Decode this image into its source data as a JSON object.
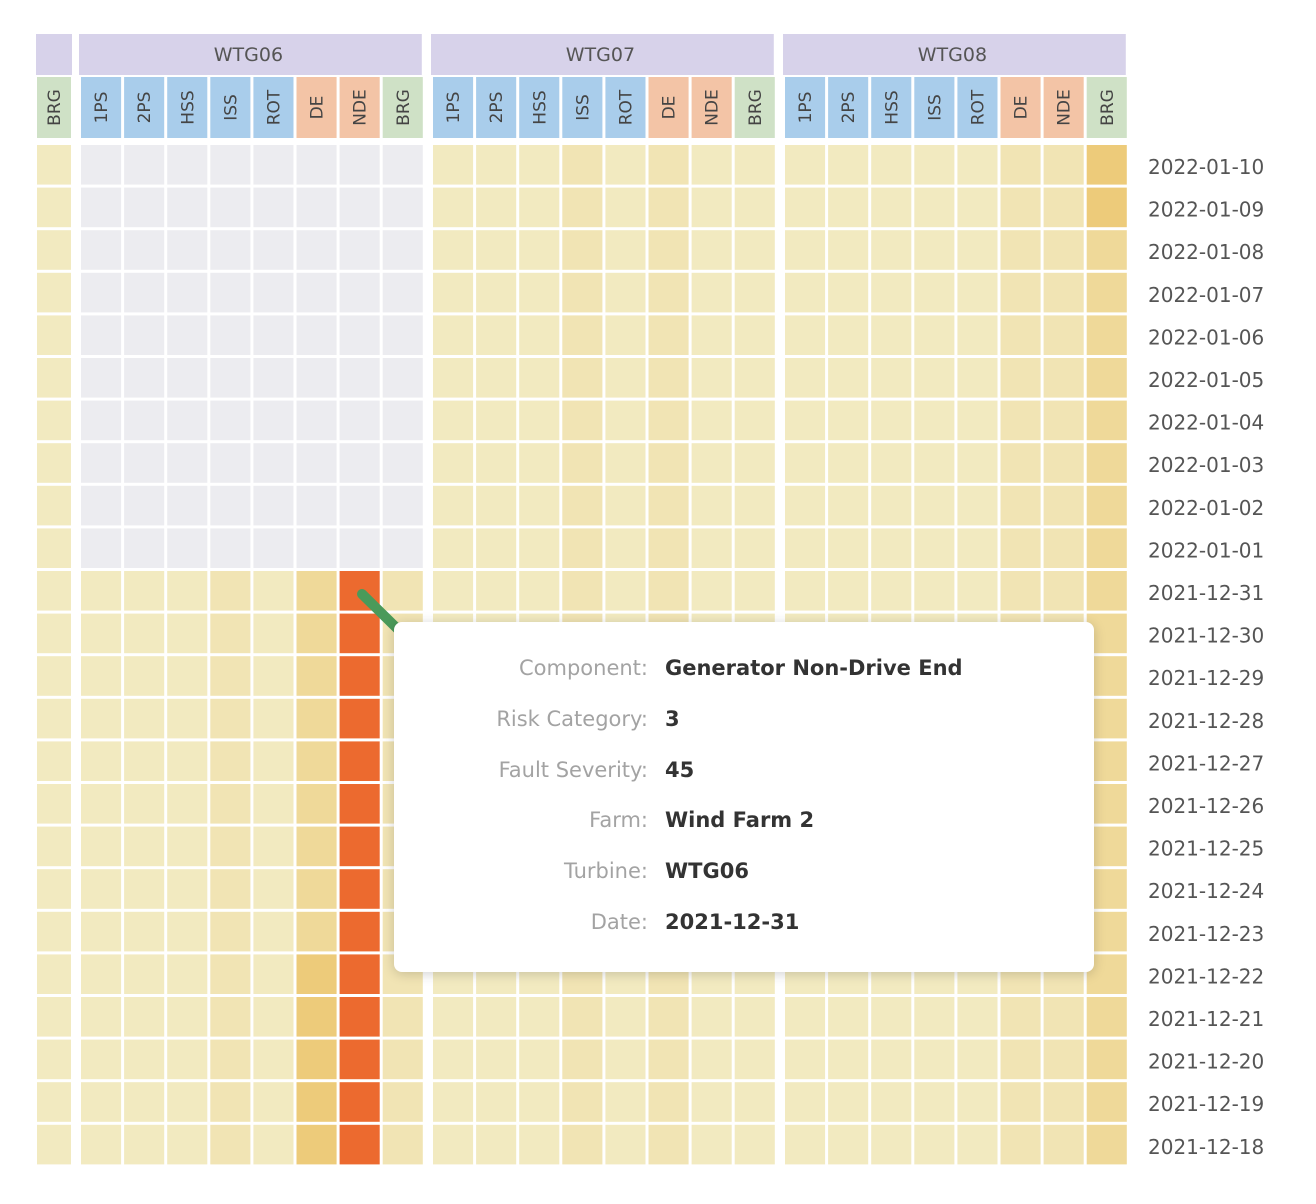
{
  "chart_data": {
    "type": "heatmap",
    "turbines": [
      "WTG06",
      "WTG07",
      "WTG08"
    ],
    "standalone_column": {
      "label": "BRG",
      "group": "brg"
    },
    "components": [
      {
        "label": "1PS",
        "group": "gearbox"
      },
      {
        "label": "2PS",
        "group": "gearbox"
      },
      {
        "label": "HSS",
        "group": "gearbox"
      },
      {
        "label": "ISS",
        "group": "gearbox"
      },
      {
        "label": "ROT",
        "group": "gearbox"
      },
      {
        "label": "DE",
        "group": "generator"
      },
      {
        "label": "NDE",
        "group": "generator"
      },
      {
        "label": "BRG",
        "group": "brg"
      }
    ],
    "dates": [
      "2022-01-10",
      "2022-01-09",
      "2022-01-08",
      "2022-01-07",
      "2022-01-06",
      "2022-01-05",
      "2022-01-04",
      "2022-01-03",
      "2022-01-02",
      "2022-01-01",
      "2021-12-31",
      "2021-12-30",
      "2021-12-29",
      "2021-12-28",
      "2021-12-27",
      "2021-12-26",
      "2021-12-25",
      "2021-12-24",
      "2021-12-23",
      "2021-12-22",
      "2021-12-21",
      "2021-12-20",
      "2021-12-19",
      "2021-12-18"
    ],
    "category_colors": {
      "missing": "#ececf0",
      "1": "#f2eac0",
      "1.5": "#f1e4b4",
      "2": "#efd999",
      "2.5": "#edcb7a",
      "3": "#ec6a2f"
    },
    "header_colors": {
      "turbine": "#d7d2ea",
      "gearbox": "#a9cdeb",
      "generator": "#f3c4a6",
      "brg": "#cfe1c6"
    },
    "standalone_values": [
      1,
      1,
      1,
      1,
      1,
      1,
      1,
      1,
      1,
      1,
      1,
      1,
      1,
      1,
      1,
      1,
      1,
      1,
      1,
      1,
      1,
      1,
      1,
      1
    ],
    "values": {
      "WTG06": [
        [
          "missing",
          "missing",
          "missing",
          "missing",
          "missing",
          "missing",
          "missing",
          "missing"
        ],
        [
          "missing",
          "missing",
          "missing",
          "missing",
          "missing",
          "missing",
          "missing",
          "missing"
        ],
        [
          "missing",
          "missing",
          "missing",
          "missing",
          "missing",
          "missing",
          "missing",
          "missing"
        ],
        [
          "missing",
          "missing",
          "missing",
          "missing",
          "missing",
          "missing",
          "missing",
          "missing"
        ],
        [
          "missing",
          "missing",
          "missing",
          "missing",
          "missing",
          "missing",
          "missing",
          "missing"
        ],
        [
          "missing",
          "missing",
          "missing",
          "missing",
          "missing",
          "missing",
          "missing",
          "missing"
        ],
        [
          "missing",
          "missing",
          "missing",
          "missing",
          "missing",
          "missing",
          "missing",
          "missing"
        ],
        [
          "missing",
          "missing",
          "missing",
          "missing",
          "missing",
          "missing",
          "missing",
          "missing"
        ],
        [
          "missing",
          "missing",
          "missing",
          "missing",
          "missing",
          "missing",
          "missing",
          "missing"
        ],
        [
          "missing",
          "missing",
          "missing",
          "missing",
          "missing",
          "missing",
          "missing",
          "missing"
        ],
        [
          1,
          1,
          1,
          1.5,
          1,
          2,
          3,
          1.5
        ],
        [
          1,
          1,
          1,
          1.5,
          1,
          2,
          3,
          1.5
        ],
        [
          1,
          1,
          1,
          1.5,
          1,
          2,
          3,
          1.5
        ],
        [
          1,
          1,
          1,
          1.5,
          1,
          2,
          3,
          1.5
        ],
        [
          1,
          1,
          1,
          1.5,
          1,
          2,
          3,
          1.5
        ],
        [
          1,
          1,
          1,
          1.5,
          1,
          2,
          3,
          1.5
        ],
        [
          1,
          1,
          1,
          1.5,
          1,
          2,
          3,
          1.5
        ],
        [
          1,
          1,
          1,
          1.5,
          1,
          2,
          3,
          1.5
        ],
        [
          1,
          1,
          1,
          1.5,
          1,
          2,
          3,
          1.5
        ],
        [
          1,
          1,
          1,
          1.5,
          1,
          2.5,
          3,
          1.5
        ],
        [
          1,
          1,
          1,
          1.5,
          1,
          2.5,
          3,
          1.5
        ],
        [
          1,
          1,
          1,
          1.5,
          1,
          2.5,
          3,
          1.5
        ],
        [
          1,
          1,
          1,
          1.5,
          1,
          2.5,
          3,
          1.5
        ],
        [
          1,
          1,
          1,
          1.5,
          1,
          2.5,
          3,
          1.5
        ]
      ],
      "WTG07": [
        [
          1,
          1,
          1,
          1.5,
          1,
          1.5,
          1,
          1
        ],
        [
          1,
          1,
          1,
          1.5,
          1,
          1.5,
          1,
          1
        ],
        [
          1,
          1,
          1,
          1.5,
          1,
          1.5,
          1,
          1
        ],
        [
          1,
          1,
          1,
          1.5,
          1,
          1.5,
          1,
          1
        ],
        [
          1,
          1,
          1,
          1.5,
          1,
          1.5,
          1,
          1
        ],
        [
          1,
          1,
          1,
          1.5,
          1,
          1.5,
          1,
          1
        ],
        [
          1,
          1,
          1,
          1.5,
          1,
          1.5,
          1,
          1
        ],
        [
          1,
          1,
          1,
          1.5,
          1,
          1.5,
          1,
          1
        ],
        [
          1,
          1,
          1,
          1.5,
          1,
          1.5,
          1,
          1
        ],
        [
          1,
          1,
          1,
          1.5,
          1,
          1.5,
          1,
          1
        ],
        [
          1,
          1,
          1,
          1.5,
          1,
          1.5,
          1,
          1
        ],
        [
          1,
          1,
          1,
          1.5,
          1,
          1.5,
          1,
          1
        ],
        [
          1,
          1,
          1,
          1.5,
          1,
          1.5,
          1,
          1
        ],
        [
          1,
          1,
          1,
          1.5,
          1,
          1.5,
          1,
          1
        ],
        [
          1,
          1,
          1,
          1.5,
          1,
          1.5,
          1,
          1
        ],
        [
          1,
          1,
          1,
          1.5,
          1,
          1.5,
          1,
          1
        ],
        [
          1,
          1,
          1,
          1.5,
          1,
          1.5,
          1,
          1
        ],
        [
          1,
          1,
          1,
          1.5,
          1,
          1.5,
          1,
          1
        ],
        [
          1,
          1,
          1,
          1.5,
          1,
          1.5,
          1,
          1
        ],
        [
          1,
          1,
          1,
          1.5,
          1,
          1.5,
          1,
          1
        ],
        [
          1,
          1,
          1,
          1.5,
          1,
          1.5,
          1,
          1
        ],
        [
          1,
          1,
          1,
          1.5,
          1,
          1.5,
          1,
          1
        ],
        [
          1,
          1,
          1,
          1.5,
          1,
          1.5,
          1,
          1
        ],
        [
          1,
          1,
          1,
          1.5,
          1,
          1.5,
          1,
          1
        ]
      ],
      "WTG08": [
        [
          1,
          1,
          1,
          1,
          1,
          1.5,
          1.5,
          2.5
        ],
        [
          1,
          1,
          1,
          1,
          1,
          1.5,
          1.5,
          2.5
        ],
        [
          1,
          1,
          1,
          1,
          1,
          1.5,
          1.5,
          2
        ],
        [
          1,
          1,
          1,
          1,
          1,
          1.5,
          1.5,
          2
        ],
        [
          1,
          1,
          1,
          1,
          1,
          1.5,
          1.5,
          2
        ],
        [
          1,
          1,
          1,
          1,
          1,
          1.5,
          1.5,
          2
        ],
        [
          1,
          1,
          1,
          1,
          1,
          1.5,
          1.5,
          2
        ],
        [
          1,
          1,
          1,
          1,
          1,
          1.5,
          1.5,
          2
        ],
        [
          1,
          1,
          1,
          1,
          1,
          1.5,
          1.5,
          2
        ],
        [
          1,
          1,
          1,
          1,
          1,
          1.5,
          1.5,
          2
        ],
        [
          1,
          1,
          1,
          1,
          1,
          1.5,
          1.5,
          2
        ],
        [
          1,
          1,
          1,
          1,
          1,
          1.5,
          1.5,
          2
        ],
        [
          1,
          1,
          1,
          1,
          1,
          1.5,
          1.5,
          2
        ],
        [
          1,
          1,
          1,
          1,
          1,
          1.5,
          1.5,
          2
        ],
        [
          1,
          1,
          1,
          1,
          1,
          1.5,
          1.5,
          2
        ],
        [
          1,
          1,
          1,
          1,
          1,
          1.5,
          1.5,
          2
        ],
        [
          1,
          1,
          1,
          1,
          1,
          1.5,
          1.5,
          2
        ],
        [
          1,
          1,
          1,
          1,
          1,
          1.5,
          1.5,
          2
        ],
        [
          1,
          1,
          1,
          1,
          1,
          1.5,
          1.5,
          2
        ],
        [
          1,
          1,
          1,
          1,
          1,
          1.5,
          1.5,
          2
        ],
        [
          1,
          1,
          1,
          1,
          1,
          1.5,
          1.5,
          2
        ],
        [
          1,
          1,
          1,
          1,
          1,
          1.5,
          1.5,
          2
        ],
        [
          1,
          1,
          1,
          1,
          1,
          1.5,
          1.5,
          2
        ],
        [
          1,
          1,
          1,
          1,
          1,
          1.5,
          1.5,
          2
        ]
      ]
    },
    "arrow_color": "#4a9a5a"
  },
  "tooltip": {
    "rows": [
      {
        "label": "Component:",
        "value": "Generator Non-Drive End"
      },
      {
        "label": "Risk Category:",
        "value": "3"
      },
      {
        "label": "Fault Severity:",
        "value": "45"
      },
      {
        "label": "Farm:",
        "value": "Wind Farm 2"
      },
      {
        "label": "Turbine:",
        "value": "WTG06"
      },
      {
        "label": "Date:",
        "value": "2021-12-31"
      }
    ]
  }
}
